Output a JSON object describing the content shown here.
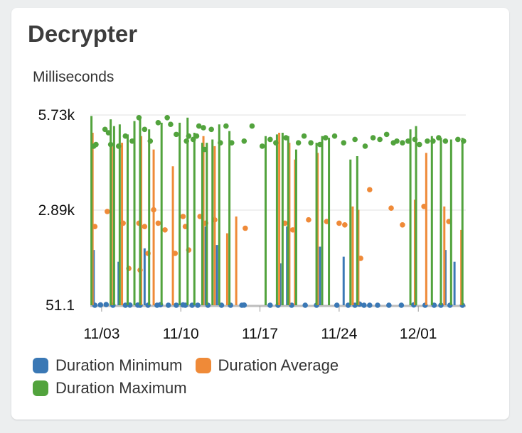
{
  "widget": {
    "title": "Decrypter",
    "unit_label": "Milliseconds"
  },
  "chart_data": {
    "type": "line",
    "title": "Decrypter",
    "ylabel": "Milliseconds",
    "xlabel": "",
    "y_ticks": [
      "5.73k",
      "2.89k",
      "51.1"
    ],
    "y_tick_values": [
      5730,
      2890,
      51.1
    ],
    "ylim": [
      51.1,
      5730
    ],
    "x_tick_labels": [
      "11/03",
      "11/10",
      "11/17",
      "11/24",
      "12/01"
    ],
    "x_tick_days": [
      3,
      10,
      17,
      24,
      31
    ],
    "xlim": [
      2.0,
      35.2
    ],
    "grid": true,
    "legend_position": "bottom",
    "series": [
      {
        "name": "Duration Minimum",
        "color": "#3a78b5",
        "spikes": [
          [
            2.3,
            1700
          ],
          [
            4.5,
            1350
          ],
          [
            6.8,
            1750
          ],
          [
            12.2,
            2400
          ],
          [
            13.2,
            1850
          ],
          [
            18.8,
            1300
          ],
          [
            19.4,
            2400
          ],
          [
            22.3,
            1800
          ],
          [
            24.4,
            1500
          ],
          [
            33.4,
            1700
          ],
          [
            34.2,
            1350
          ]
        ],
        "points": [
          [
            2.4,
            51.1
          ],
          [
            2.9,
            60
          ],
          [
            3.4,
            70
          ],
          [
            4.0,
            51.1
          ],
          [
            5.1,
            51.1
          ],
          [
            5.5,
            55
          ],
          [
            6.2,
            55
          ],
          [
            6.4,
            51.1
          ],
          [
            7.1,
            51.1
          ],
          [
            7.9,
            51.1
          ],
          [
            8.2,
            65
          ],
          [
            8.9,
            51.1
          ],
          [
            9.6,
            51.1
          ],
          [
            10.2,
            60
          ],
          [
            10.4,
            51.1
          ],
          [
            11.0,
            51.1
          ],
          [
            11.5,
            51.1
          ],
          [
            12.4,
            51.1
          ],
          [
            13.6,
            51.1
          ],
          [
            14.4,
            51.1
          ],
          [
            15.4,
            51.1
          ],
          [
            15.6,
            55
          ],
          [
            17.9,
            51.1
          ],
          [
            18.6,
            51.1
          ],
          [
            19.8,
            51.1
          ],
          [
            21.0,
            51.1
          ],
          [
            22.0,
            51.1
          ],
          [
            23.8,
            51.1
          ],
          [
            24.8,
            51.1
          ],
          [
            25.4,
            51.1
          ],
          [
            25.8,
            85
          ],
          [
            26.2,
            51.1
          ],
          [
            26.7,
            51.1
          ],
          [
            27.4,
            51.1
          ],
          [
            28.4,
            51.1
          ],
          [
            29.5,
            51.1
          ],
          [
            30.6,
            60
          ],
          [
            31.6,
            51.1
          ],
          [
            32.4,
            51.1
          ],
          [
            33.0,
            51.1
          ],
          [
            33.8,
            51.1
          ],
          [
            34.9,
            51.1
          ]
        ]
      },
      {
        "name": "Duration Average",
        "color": "#ef8a38",
        "spikes": [
          [
            2.2,
            5200
          ],
          [
            3.9,
            4800
          ],
          [
            4.8,
            4900
          ],
          [
            6.5,
            5100
          ],
          [
            7.6,
            4700
          ],
          [
            9.3,
            4200
          ],
          [
            12.0,
            5100
          ],
          [
            13.0,
            4800
          ],
          [
            14.9,
            2700
          ],
          [
            14.1,
            2200
          ],
          [
            18.7,
            5200
          ],
          [
            19.6,
            4900
          ],
          [
            20.1,
            4400
          ],
          [
            22.1,
            4600
          ],
          [
            25.2,
            3000
          ],
          [
            25.7,
            2900
          ],
          [
            30.7,
            3200
          ],
          [
            31.7,
            4600
          ],
          [
            33.3,
            3000
          ],
          [
            34.8,
            2300
          ]
        ],
        "points": [
          [
            2.4,
            2400
          ],
          [
            3.5,
            2850
          ],
          [
            4.9,
            2500
          ],
          [
            5.4,
            1150
          ],
          [
            6.3,
            2500
          ],
          [
            6.4,
            1100
          ],
          [
            6.8,
            2400
          ],
          [
            7.1,
            1600
          ],
          [
            7.6,
            2900
          ],
          [
            8.0,
            2500
          ],
          [
            8.6,
            2300
          ],
          [
            9.5,
            1600
          ],
          [
            10.2,
            2700
          ],
          [
            10.4,
            2400
          ],
          [
            10.7,
            1700
          ],
          [
            11.7,
            2700
          ],
          [
            12.2,
            2500
          ],
          [
            13.0,
            2600
          ],
          [
            15.7,
            2350
          ],
          [
            19.2,
            2500
          ],
          [
            19.9,
            2300
          ],
          [
            21.3,
            2600
          ],
          [
            22.9,
            2550
          ],
          [
            24.0,
            2500
          ],
          [
            24.5,
            2450
          ],
          [
            25.9,
            1450
          ],
          [
            26.7,
            3500
          ],
          [
            28.6,
            2950
          ],
          [
            29.6,
            2450
          ],
          [
            31.5,
            3000
          ],
          [
            33.7,
            2550
          ]
        ]
      },
      {
        "name": "Duration Maximum",
        "color": "#52a33d",
        "spikes": [
          [
            2.1,
            5700
          ],
          [
            3.8,
            5600
          ],
          [
            4.1,
            5400
          ],
          [
            4.6,
            5450
          ],
          [
            5.3,
            5150
          ],
          [
            5.9,
            5550
          ],
          [
            6.4,
            5650
          ],
          [
            7.2,
            5300
          ],
          [
            8.3,
            5500
          ],
          [
            9.9,
            5500
          ],
          [
            10.6,
            5650
          ],
          [
            11.2,
            5200
          ],
          [
            11.9,
            4900
          ],
          [
            12.3,
            4900
          ],
          [
            12.8,
            5000
          ],
          [
            13.4,
            5450
          ],
          [
            14.3,
            5250
          ],
          [
            17.5,
            5100
          ],
          [
            18.5,
            5150
          ],
          [
            19.0,
            5200
          ],
          [
            19.5,
            5100
          ],
          [
            20.2,
            4700
          ],
          [
            22.0,
            4900
          ],
          [
            22.5,
            5100
          ],
          [
            23.1,
            5050
          ],
          [
            25.0,
            4400
          ],
          [
            25.6,
            4500
          ],
          [
            30.3,
            5300
          ],
          [
            30.8,
            5400
          ],
          [
            32.2,
            5100
          ],
          [
            33.0,
            5050
          ],
          [
            33.9,
            5000
          ],
          [
            34.9,
            5050
          ]
        ],
        "points": [
          [
            2.3,
            4800
          ],
          [
            2.5,
            4850
          ],
          [
            3.3,
            5300
          ],
          [
            3.6,
            5200
          ],
          [
            3.8,
            4850
          ],
          [
            4.5,
            4800
          ],
          [
            5.1,
            5100
          ],
          [
            5.7,
            4950
          ],
          [
            6.3,
            5650
          ],
          [
            6.8,
            5300
          ],
          [
            7.3,
            4950
          ],
          [
            8.0,
            5500
          ],
          [
            8.8,
            5650
          ],
          [
            9.1,
            5450
          ],
          [
            9.6,
            5150
          ],
          [
            10.5,
            4950
          ],
          [
            10.7,
            5100
          ],
          [
            11.1,
            5000
          ],
          [
            11.4,
            5100
          ],
          [
            11.6,
            5400
          ],
          [
            12.0,
            5350
          ],
          [
            12.1,
            4700
          ],
          [
            12.7,
            5300
          ],
          [
            13.5,
            4900
          ],
          [
            14.0,
            5400
          ],
          [
            14.5,
            4900
          ],
          [
            15.6,
            4950
          ],
          [
            16.3,
            5400
          ],
          [
            17.2,
            4800
          ],
          [
            17.9,
            5000
          ],
          [
            18.4,
            4900
          ],
          [
            19.3,
            5050
          ],
          [
            20.4,
            4900
          ],
          [
            20.9,
            5100
          ],
          [
            21.5,
            4900
          ],
          [
            22.3,
            4850
          ],
          [
            22.8,
            5050
          ],
          [
            23.6,
            5100
          ],
          [
            24.4,
            4900
          ],
          [
            25.4,
            5000
          ],
          [
            26.3,
            4800
          ],
          [
            27.0,
            5050
          ],
          [
            27.6,
            5000
          ],
          [
            28.2,
            5150
          ],
          [
            28.8,
            4900
          ],
          [
            29.1,
            4950
          ],
          [
            29.6,
            4900
          ],
          [
            30.1,
            4950
          ],
          [
            30.7,
            5000
          ],
          [
            31.1,
            4850
          ],
          [
            31.8,
            4950
          ],
          [
            32.3,
            4950
          ],
          [
            32.8,
            5050
          ],
          [
            33.4,
            4950
          ],
          [
            34.5,
            5000
          ],
          [
            35.0,
            4950
          ]
        ]
      }
    ]
  }
}
